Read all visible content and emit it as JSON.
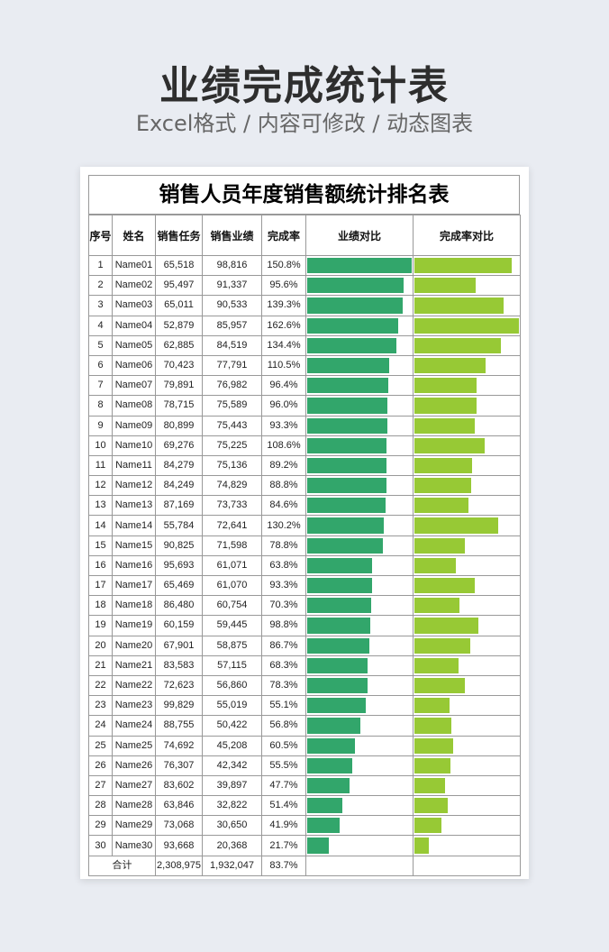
{
  "page": {
    "title": "业绩完成统计表",
    "subtitle": "Excel格式 / 内容可修改 / 动态图表"
  },
  "table": {
    "title": "销售人员年度销售额统计排名表",
    "headers": [
      "序号",
      "姓名",
      "销售任务",
      "销售业绩",
      "完成率",
      "业绩对比",
      "完成率对比"
    ],
    "rows": [
      [
        "1",
        "Name01",
        "65,518",
        "98,816",
        "150.8%"
      ],
      [
        "2",
        "Name02",
        "95,497",
        "91,337",
        "95.6%"
      ],
      [
        "3",
        "Name03",
        "65,011",
        "90,533",
        "139.3%"
      ],
      [
        "4",
        "Name04",
        "52,879",
        "85,957",
        "162.6%"
      ],
      [
        "5",
        "Name05",
        "62,885",
        "84,519",
        "134.4%"
      ],
      [
        "6",
        "Name06",
        "70,423",
        "77,791",
        "110.5%"
      ],
      [
        "7",
        "Name07",
        "79,891",
        "76,982",
        "96.4%"
      ],
      [
        "8",
        "Name08",
        "78,715",
        "75,589",
        "96.0%"
      ],
      [
        "9",
        "Name09",
        "80,899",
        "75,443",
        "93.3%"
      ],
      [
        "10",
        "Name10",
        "69,276",
        "75,225",
        "108.6%"
      ],
      [
        "11",
        "Name11",
        "84,279",
        "75,136",
        "89.2%"
      ],
      [
        "12",
        "Name12",
        "84,249",
        "74,829",
        "88.8%"
      ],
      [
        "13",
        "Name13",
        "87,169",
        "73,733",
        "84.6%"
      ],
      [
        "14",
        "Name14",
        "55,784",
        "72,641",
        "130.2%"
      ],
      [
        "15",
        "Name15",
        "90,825",
        "71,598",
        "78.8%"
      ],
      [
        "16",
        "Name16",
        "95,693",
        "61,071",
        "63.8%"
      ],
      [
        "17",
        "Name17",
        "65,469",
        "61,070",
        "93.3%"
      ],
      [
        "18",
        "Name18",
        "86,480",
        "60,754",
        "70.3%"
      ],
      [
        "19",
        "Name19",
        "60,159",
        "59,445",
        "98.8%"
      ],
      [
        "20",
        "Name20",
        "67,901",
        "58,875",
        "86.7%"
      ],
      [
        "21",
        "Name21",
        "83,583",
        "57,115",
        "68.3%"
      ],
      [
        "22",
        "Name22",
        "72,623",
        "56,860",
        "78.3%"
      ],
      [
        "23",
        "Name23",
        "99,829",
        "55,019",
        "55.1%"
      ],
      [
        "24",
        "Name24",
        "88,755",
        "50,422",
        "56.8%"
      ],
      [
        "25",
        "Name25",
        "74,692",
        "45,208",
        "60.5%"
      ],
      [
        "26",
        "Name26",
        "76,307",
        "42,342",
        "55.5%"
      ],
      [
        "27",
        "Name27",
        "83,602",
        "39,897",
        "47.7%"
      ],
      [
        "28",
        "Name28",
        "63,846",
        "32,822",
        "51.4%"
      ],
      [
        "29",
        "Name29",
        "73,068",
        "30,650",
        "41.9%"
      ],
      [
        "30",
        "Name30",
        "93,668",
        "20,368",
        "21.7%"
      ]
    ],
    "total": [
      "合计",
      "2,308,975",
      "1,932,047",
      "83.7%"
    ],
    "colors": {
      "performance_bar": "#32a66b",
      "rate_bar": "#97c935",
      "below_target_text": "#c0272d"
    }
  }
}
